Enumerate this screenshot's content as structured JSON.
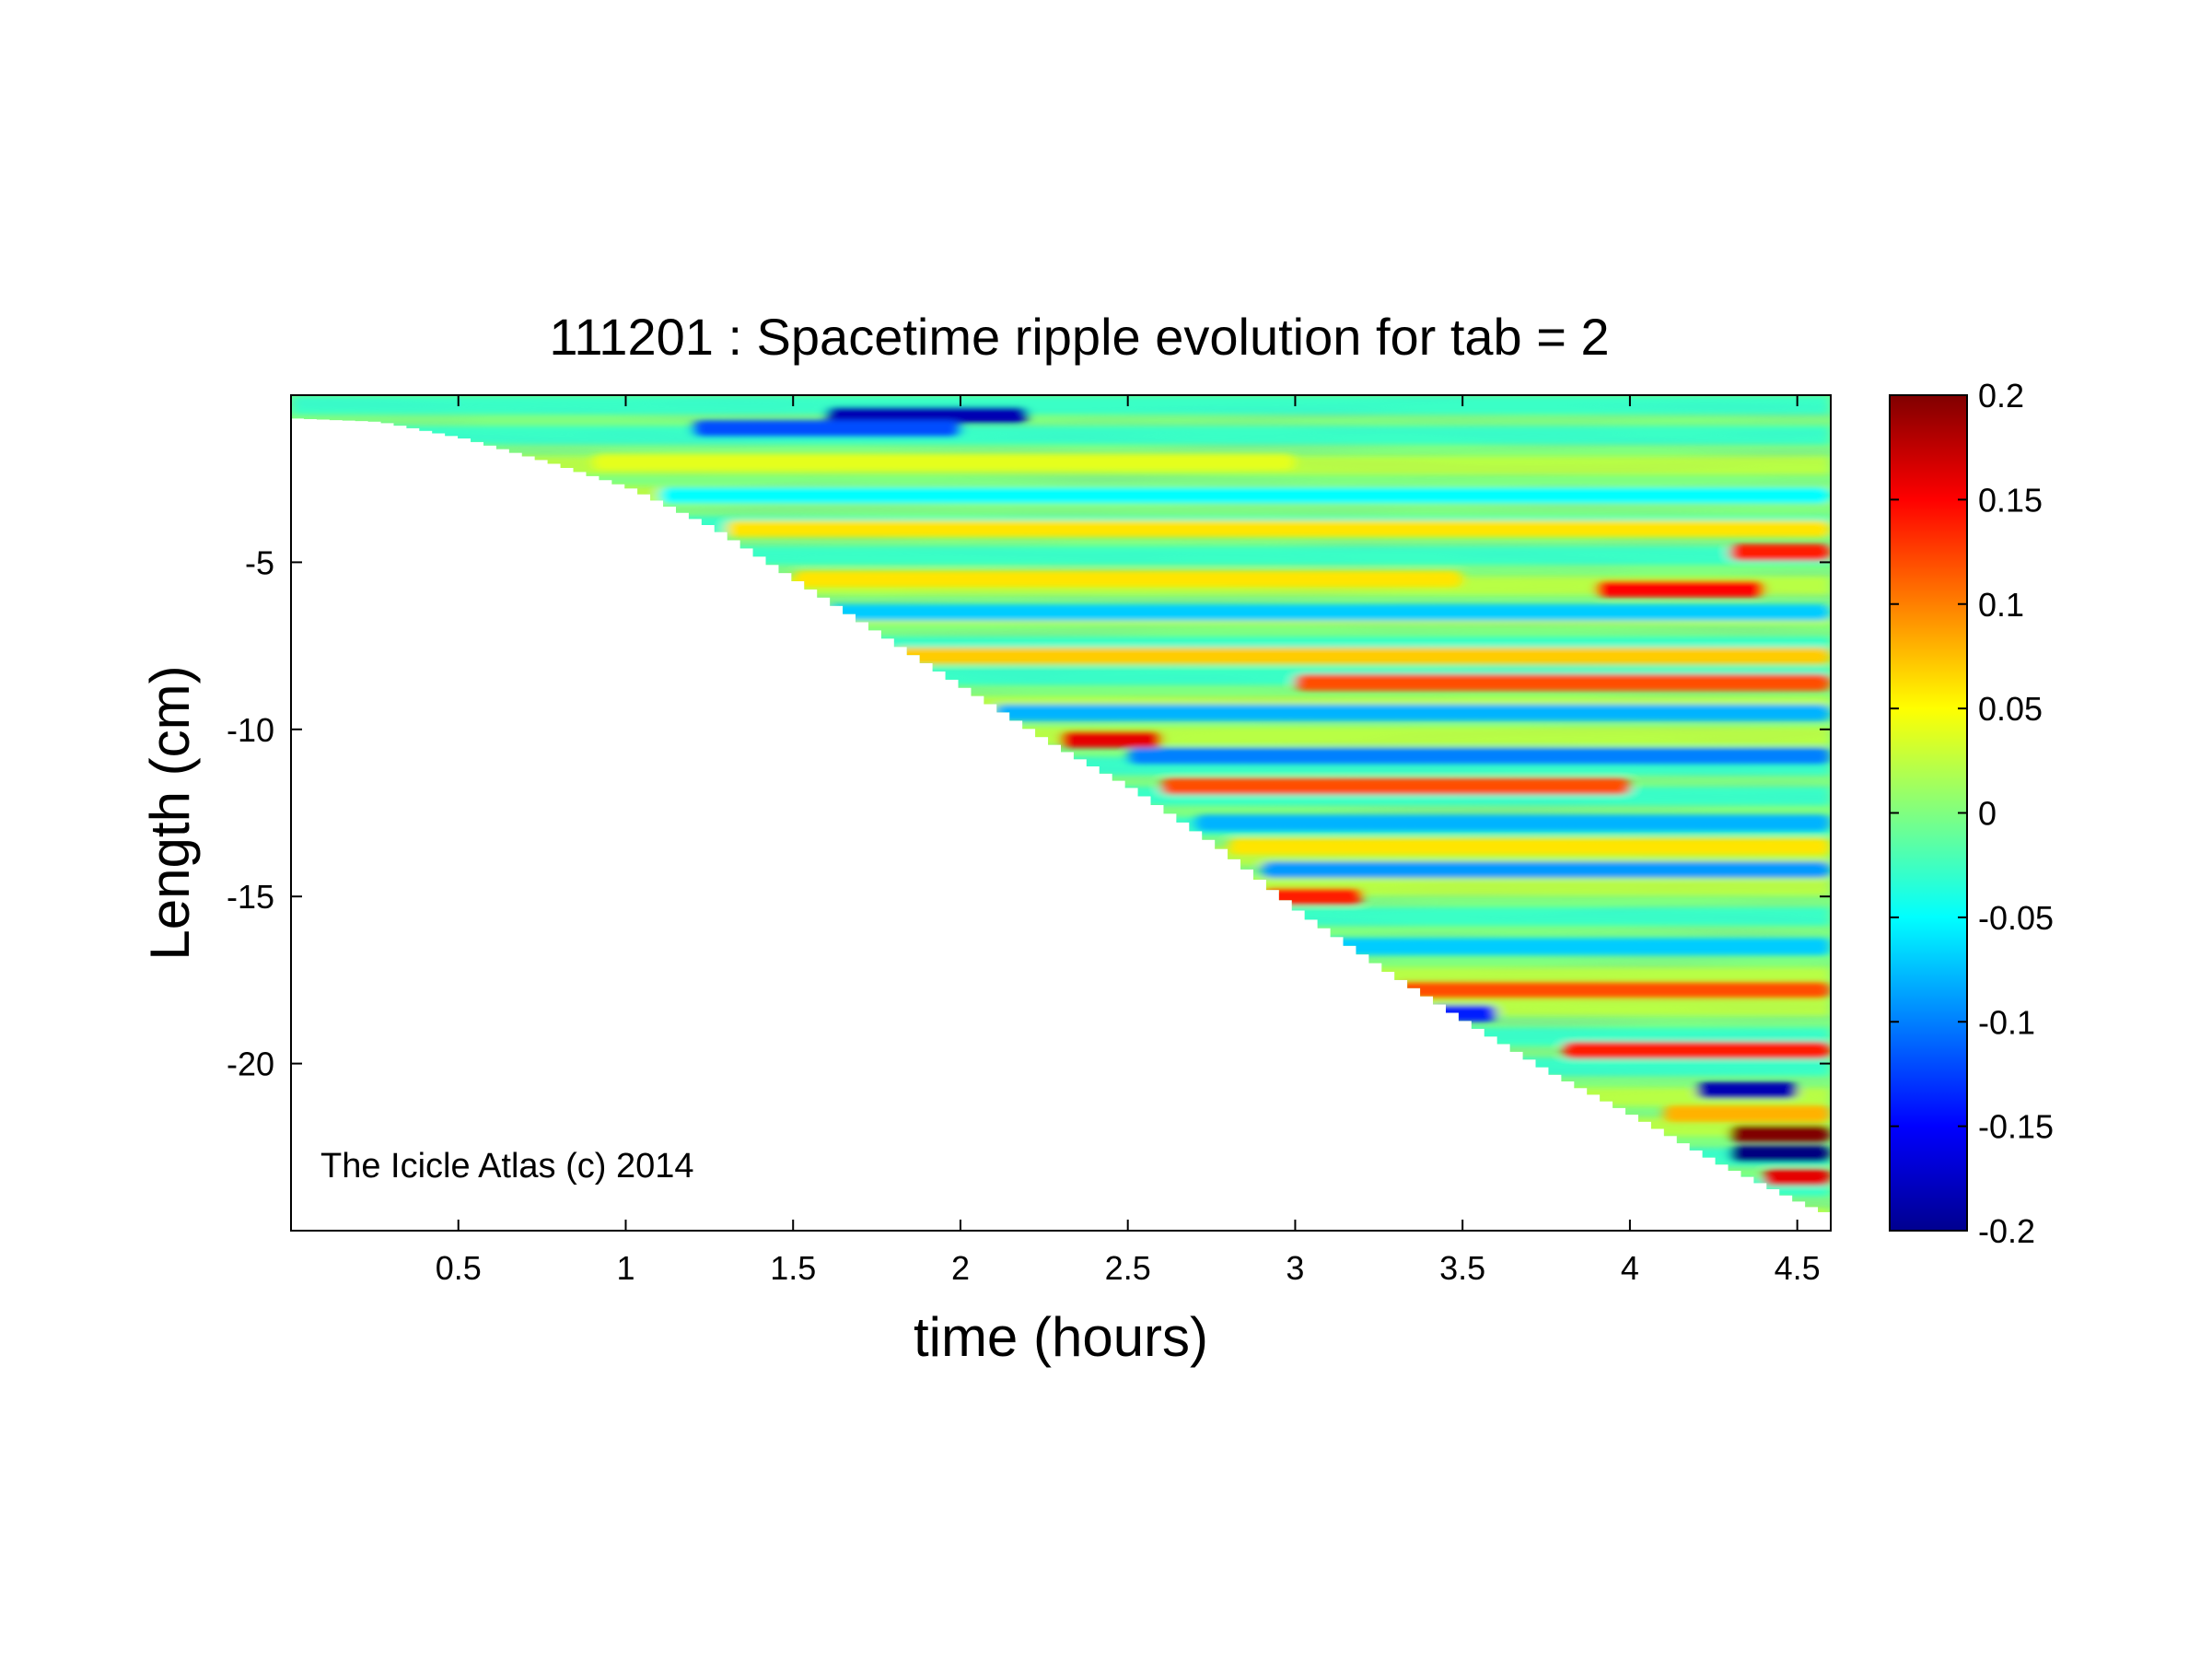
{
  "chart_data": {
    "type": "heatmap",
    "title": "111201 : Spacetime ripple evolution for tab = 2",
    "xlabel": "time (hours)",
    "ylabel": "Length (cm)",
    "xlim": [
      0,
      4.6
    ],
    "ylim": [
      -25,
      0
    ],
    "x_ticks": [
      0.5,
      1,
      1.5,
      2,
      2.5,
      3,
      3.5,
      4,
      4.5
    ],
    "x_tick_labels": [
      "0.5",
      "1",
      "1.5",
      "2",
      "2.5",
      "3",
      "3.5",
      "4",
      "4.5"
    ],
    "y_ticks": [
      -5,
      -10,
      -15,
      -20
    ],
    "y_tick_labels": [
      "-5",
      "-10",
      "-15",
      "-20"
    ],
    "colorbar": {
      "range": [
        -0.2,
        0.2
      ],
      "ticks": [
        0.2,
        0.15,
        0.1,
        0.05,
        0,
        -0.05,
        -0.1,
        -0.15,
        -0.2
      ],
      "tick_labels": [
        "0.2",
        "0.15",
        "0.1",
        "0.05",
        "0",
        "-0.05",
        "-0.1",
        "-0.15",
        "-0.2"
      ],
      "colormap": "jet"
    },
    "annotation": "The Icicle Atlas (c) 2014",
    "grid": false,
    "icicle_length_profile": {
      "time_hours": [
        0,
        0.25,
        0.5,
        0.75,
        1.0,
        1.25,
        1.5,
        1.75,
        2.0,
        2.25,
        2.5,
        2.75,
        3.0,
        3.25,
        3.5,
        3.75,
        4.0,
        4.25,
        4.5,
        4.6
      ],
      "length_cm": [
        -0.7,
        -0.8,
        -1.3,
        -2.0,
        -2.8,
        -4.0,
        -5.6,
        -7.2,
        -8.8,
        -10.4,
        -11.8,
        -13.5,
        -15.5,
        -17.2,
        -18.8,
        -20.3,
        -21.6,
        -23.0,
        -24.2,
        -24.6
      ]
    },
    "bands": [
      {
        "length_cm": -0.6,
        "start_hours": 1.6,
        "end_hours": 2.2,
        "value": -0.18
      },
      {
        "length_cm": -1.0,
        "start_hours": 1.2,
        "end_hours": 2.0,
        "value": -0.12
      },
      {
        "length_cm": -2.0,
        "start_hours": 0.9,
        "end_hours": 3.0,
        "value": 0.04
      },
      {
        "length_cm": -3.0,
        "start_hours": 1.1,
        "end_hours": 4.6,
        "value": -0.05
      },
      {
        "length_cm": -4.0,
        "start_hours": 1.3,
        "end_hours": 4.6,
        "value": 0.06
      },
      {
        "length_cm": -4.7,
        "start_hours": 4.3,
        "end_hours": 4.6,
        "value": 0.14
      },
      {
        "length_cm": -5.5,
        "start_hours": 1.5,
        "end_hours": 3.5,
        "value": 0.06
      },
      {
        "length_cm": -5.8,
        "start_hours": 3.9,
        "end_hours": 4.4,
        "value": 0.15
      },
      {
        "length_cm": -6.5,
        "start_hours": 1.6,
        "end_hours": 4.6,
        "value": -0.07
      },
      {
        "length_cm": -7.8,
        "start_hours": 1.8,
        "end_hours": 4.6,
        "value": 0.07
      },
      {
        "length_cm": -8.6,
        "start_hours": 3.0,
        "end_hours": 4.6,
        "value": 0.12
      },
      {
        "length_cm": -9.5,
        "start_hours": 2.1,
        "end_hours": 4.6,
        "value": -0.08
      },
      {
        "length_cm": -10.3,
        "start_hours": 2.3,
        "end_hours": 2.6,
        "value": 0.16
      },
      {
        "length_cm": -10.8,
        "start_hours": 2.5,
        "end_hours": 4.6,
        "value": -0.1
      },
      {
        "length_cm": -11.7,
        "start_hours": 2.6,
        "end_hours": 4.0,
        "value": 0.12
      },
      {
        "length_cm": -12.8,
        "start_hours": 2.7,
        "end_hours": 4.6,
        "value": -0.08
      },
      {
        "length_cm": -13.5,
        "start_hours": 2.8,
        "end_hours": 4.6,
        "value": 0.06
      },
      {
        "length_cm": -14.2,
        "start_hours": 2.9,
        "end_hours": 4.6,
        "value": -0.09
      },
      {
        "length_cm": -15.0,
        "start_hours": 2.9,
        "end_hours": 3.2,
        "value": 0.14
      },
      {
        "length_cm": -16.5,
        "start_hours": 3.1,
        "end_hours": 4.6,
        "value": -0.07
      },
      {
        "length_cm": -17.8,
        "start_hours": 3.3,
        "end_hours": 4.6,
        "value": 0.12
      },
      {
        "length_cm": -18.5,
        "start_hours": 3.4,
        "end_hours": 3.6,
        "value": -0.14
      },
      {
        "length_cm": -19.6,
        "start_hours": 3.8,
        "end_hours": 4.6,
        "value": 0.14
      },
      {
        "length_cm": -20.8,
        "start_hours": 4.2,
        "end_hours": 4.5,
        "value": -0.18
      },
      {
        "length_cm": -21.5,
        "start_hours": 4.1,
        "end_hours": 4.6,
        "value": 0.08
      },
      {
        "length_cm": -22.1,
        "start_hours": 4.3,
        "end_hours": 4.6,
        "value": 0.22
      },
      {
        "length_cm": -22.7,
        "start_hours": 4.3,
        "end_hours": 4.6,
        "value": -0.2
      },
      {
        "length_cm": -23.4,
        "start_hours": 4.4,
        "end_hours": 4.6,
        "value": 0.16
      }
    ]
  }
}
